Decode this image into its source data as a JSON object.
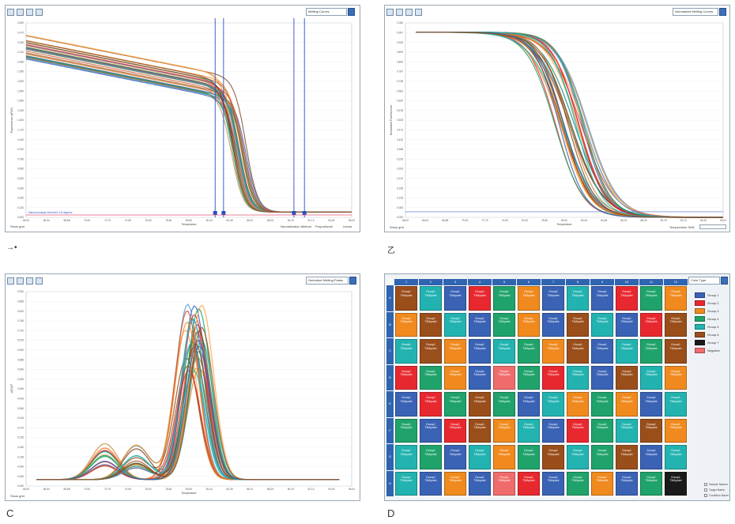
{
  "captions": {
    "a": "→•",
    "b": "乙",
    "c": "C",
    "d": "D"
  },
  "palette": [
    "#e8282f",
    "#f08a1e",
    "#1fa36b",
    "#22b3b0",
    "#3a62b5",
    "#9a4e1a",
    "#ffa64a",
    "#1a8a7d",
    "#d44a2a",
    "#5b9bd5",
    "#c98a4a",
    "#7b3f1a"
  ],
  "panel_a": {
    "dropdown": "Melting Curves",
    "status_left": "Show grid",
    "status_right": [
      "Normalization Method",
      "Proportional",
      "Linear"
    ],
    "red_label": "Manual analysis threshold: 4.8 degrees"
  },
  "panel_b": {
    "dropdown": "Normalized Melting Curves",
    "status_left": "Show grid",
    "status_right": "Temperature Shift"
  },
  "panel_c": {
    "dropdown": "Derivative Melting Peaks",
    "status_left": "Show grid"
  },
  "panel_d": {
    "dropdown": "Color Type",
    "row_labels": [
      "A",
      "B",
      "C",
      "D",
      "E",
      "F",
      "G",
      "H"
    ],
    "col_labels": [
      "1",
      "2",
      "3",
      "4",
      "5",
      "6",
      "7",
      "8",
      "9",
      "10",
      "11",
      "12"
    ],
    "well_label": "Group1 TMApoint",
    "legend": [
      {
        "name": "Group 1",
        "color": "#3a62b5"
      },
      {
        "name": "Group 2",
        "color": "#e8282f"
      },
      {
        "name": "Group 3",
        "color": "#f08a1e"
      },
      {
        "name": "Group 4",
        "color": "#1fa36b"
      },
      {
        "name": "Group 5",
        "color": "#22b3b0"
      },
      {
        "name": "Group 6",
        "color": "#9a4e1a"
      },
      {
        "name": "Group 7",
        "color": "#1a1a1a"
      },
      {
        "name": "Negative",
        "color": "#f06c6c"
      }
    ],
    "options": [
      "Sample Names",
      "Target Name",
      "Condition Name"
    ],
    "well_colors": [
      [
        "#9a4e1a",
        "#22b3b0",
        "#3a62b5",
        "#e8282f",
        "#1fa36b",
        "#f08a1e",
        "#3a62b5",
        "#22b3b0",
        "#3a62b5",
        "#e8282f",
        "#1fa36b",
        "#f08a1e"
      ],
      [
        "#f08a1e",
        "#9a4e1a",
        "#22b3b0",
        "#3a62b5",
        "#1fa36b",
        "#f08a1e",
        "#3a62b5",
        "#9a4e1a",
        "#22b3b0",
        "#3a62b5",
        "#e8282f",
        "#9a4e1a"
      ],
      [
        "#22b3b0",
        "#9a4e1a",
        "#f08a1e",
        "#3a62b5",
        "#22b3b0",
        "#1fa36b",
        "#f08a1e",
        "#9a4e1a",
        "#3a62b5",
        "#22b3b0",
        "#1fa36b",
        "#9a4e1a"
      ],
      [
        "#e8282f",
        "#1fa36b",
        "#f08a1e",
        "#3a62b5",
        "#f06c6c",
        "#1fa36b",
        "#e8282f",
        "#22b3b0",
        "#3a62b5",
        "#9a4e1a",
        "#22b3b0",
        "#f08a1e"
      ],
      [
        "#3a62b5",
        "#e8282f",
        "#1fa36b",
        "#9a4e1a",
        "#1fa36b",
        "#3a62b5",
        "#22b3b0",
        "#f08a1e",
        "#1fa36b",
        "#f08a1e",
        "#3a62b5",
        "#22b3b0"
      ],
      [
        "#1fa36b",
        "#3a62b5",
        "#e8282f",
        "#9a4e1a",
        "#f08a1e",
        "#22b3b0",
        "#3a62b5",
        "#e8282f",
        "#1fa36b",
        "#22b3b0",
        "#9a4e1a",
        "#f08a1e"
      ],
      [
        "#22b3b0",
        "#1fa36b",
        "#3a62b5",
        "#22b3b0",
        "#f08a1e",
        "#1fa36b",
        "#9a4e1a",
        "#22b3b0",
        "#1fa36b",
        "#9a4e1a",
        "#3a62b5",
        "#22b3b0"
      ],
      [
        "#22b3b0",
        "#3a62b5",
        "#f08a1e",
        "#3a62b5",
        "#f06c6c",
        "#e8282f",
        "#3a62b5",
        "#1fa36b",
        "#f08a1e",
        "#3a62b5",
        "#1fa36b",
        "#1a1a1a"
      ]
    ]
  },
  "chart_data": [
    {
      "id": "A",
      "type": "line",
      "title": "",
      "xlabel": "Temperature",
      "ylabel": "Fluorescence (dF/dT)",
      "xlim": [
        65,
        96
      ],
      "ylim": [
        0,
        2.6
      ],
      "curve_model": {
        "start_range": [
          2.1,
          2.45
        ],
        "plateau_slope": -0.028,
        "melt_tm_range": [
          84.5,
          86.0
        ],
        "baseline": 0.07
      },
      "vertical_markers": [
        83.0,
        83.8,
        90.5,
        91.5
      ],
      "series_count": 36
    },
    {
      "id": "B",
      "type": "line",
      "title": "",
      "xlabel": "Temperature",
      "ylabel": "Normalized Fluorescence",
      "xlim": [
        65,
        96
      ],
      "ylim": [
        0,
        1.05
      ],
      "curve_model": {
        "start": 1.0,
        "end": 0.0,
        "tm_range": [
          79.5,
          82.8
        ],
        "slope_width": 1.4
      },
      "threshold_line": 0.03,
      "series_count": 30
    },
    {
      "id": "C",
      "type": "line",
      "title": "",
      "xlabel": "Temperature",
      "ylabel": "-d(F)/dT",
      "xlim": [
        65,
        96
      ],
      "ylim": [
        0,
        0.9
      ],
      "curve_model": {
        "main_peak_range": [
          80.0,
          81.8
        ],
        "main_height_range": [
          0.5,
          0.82
        ],
        "shoulder_peaks": [
          72.5,
          75.5
        ]
      },
      "series_count": 30
    }
  ]
}
